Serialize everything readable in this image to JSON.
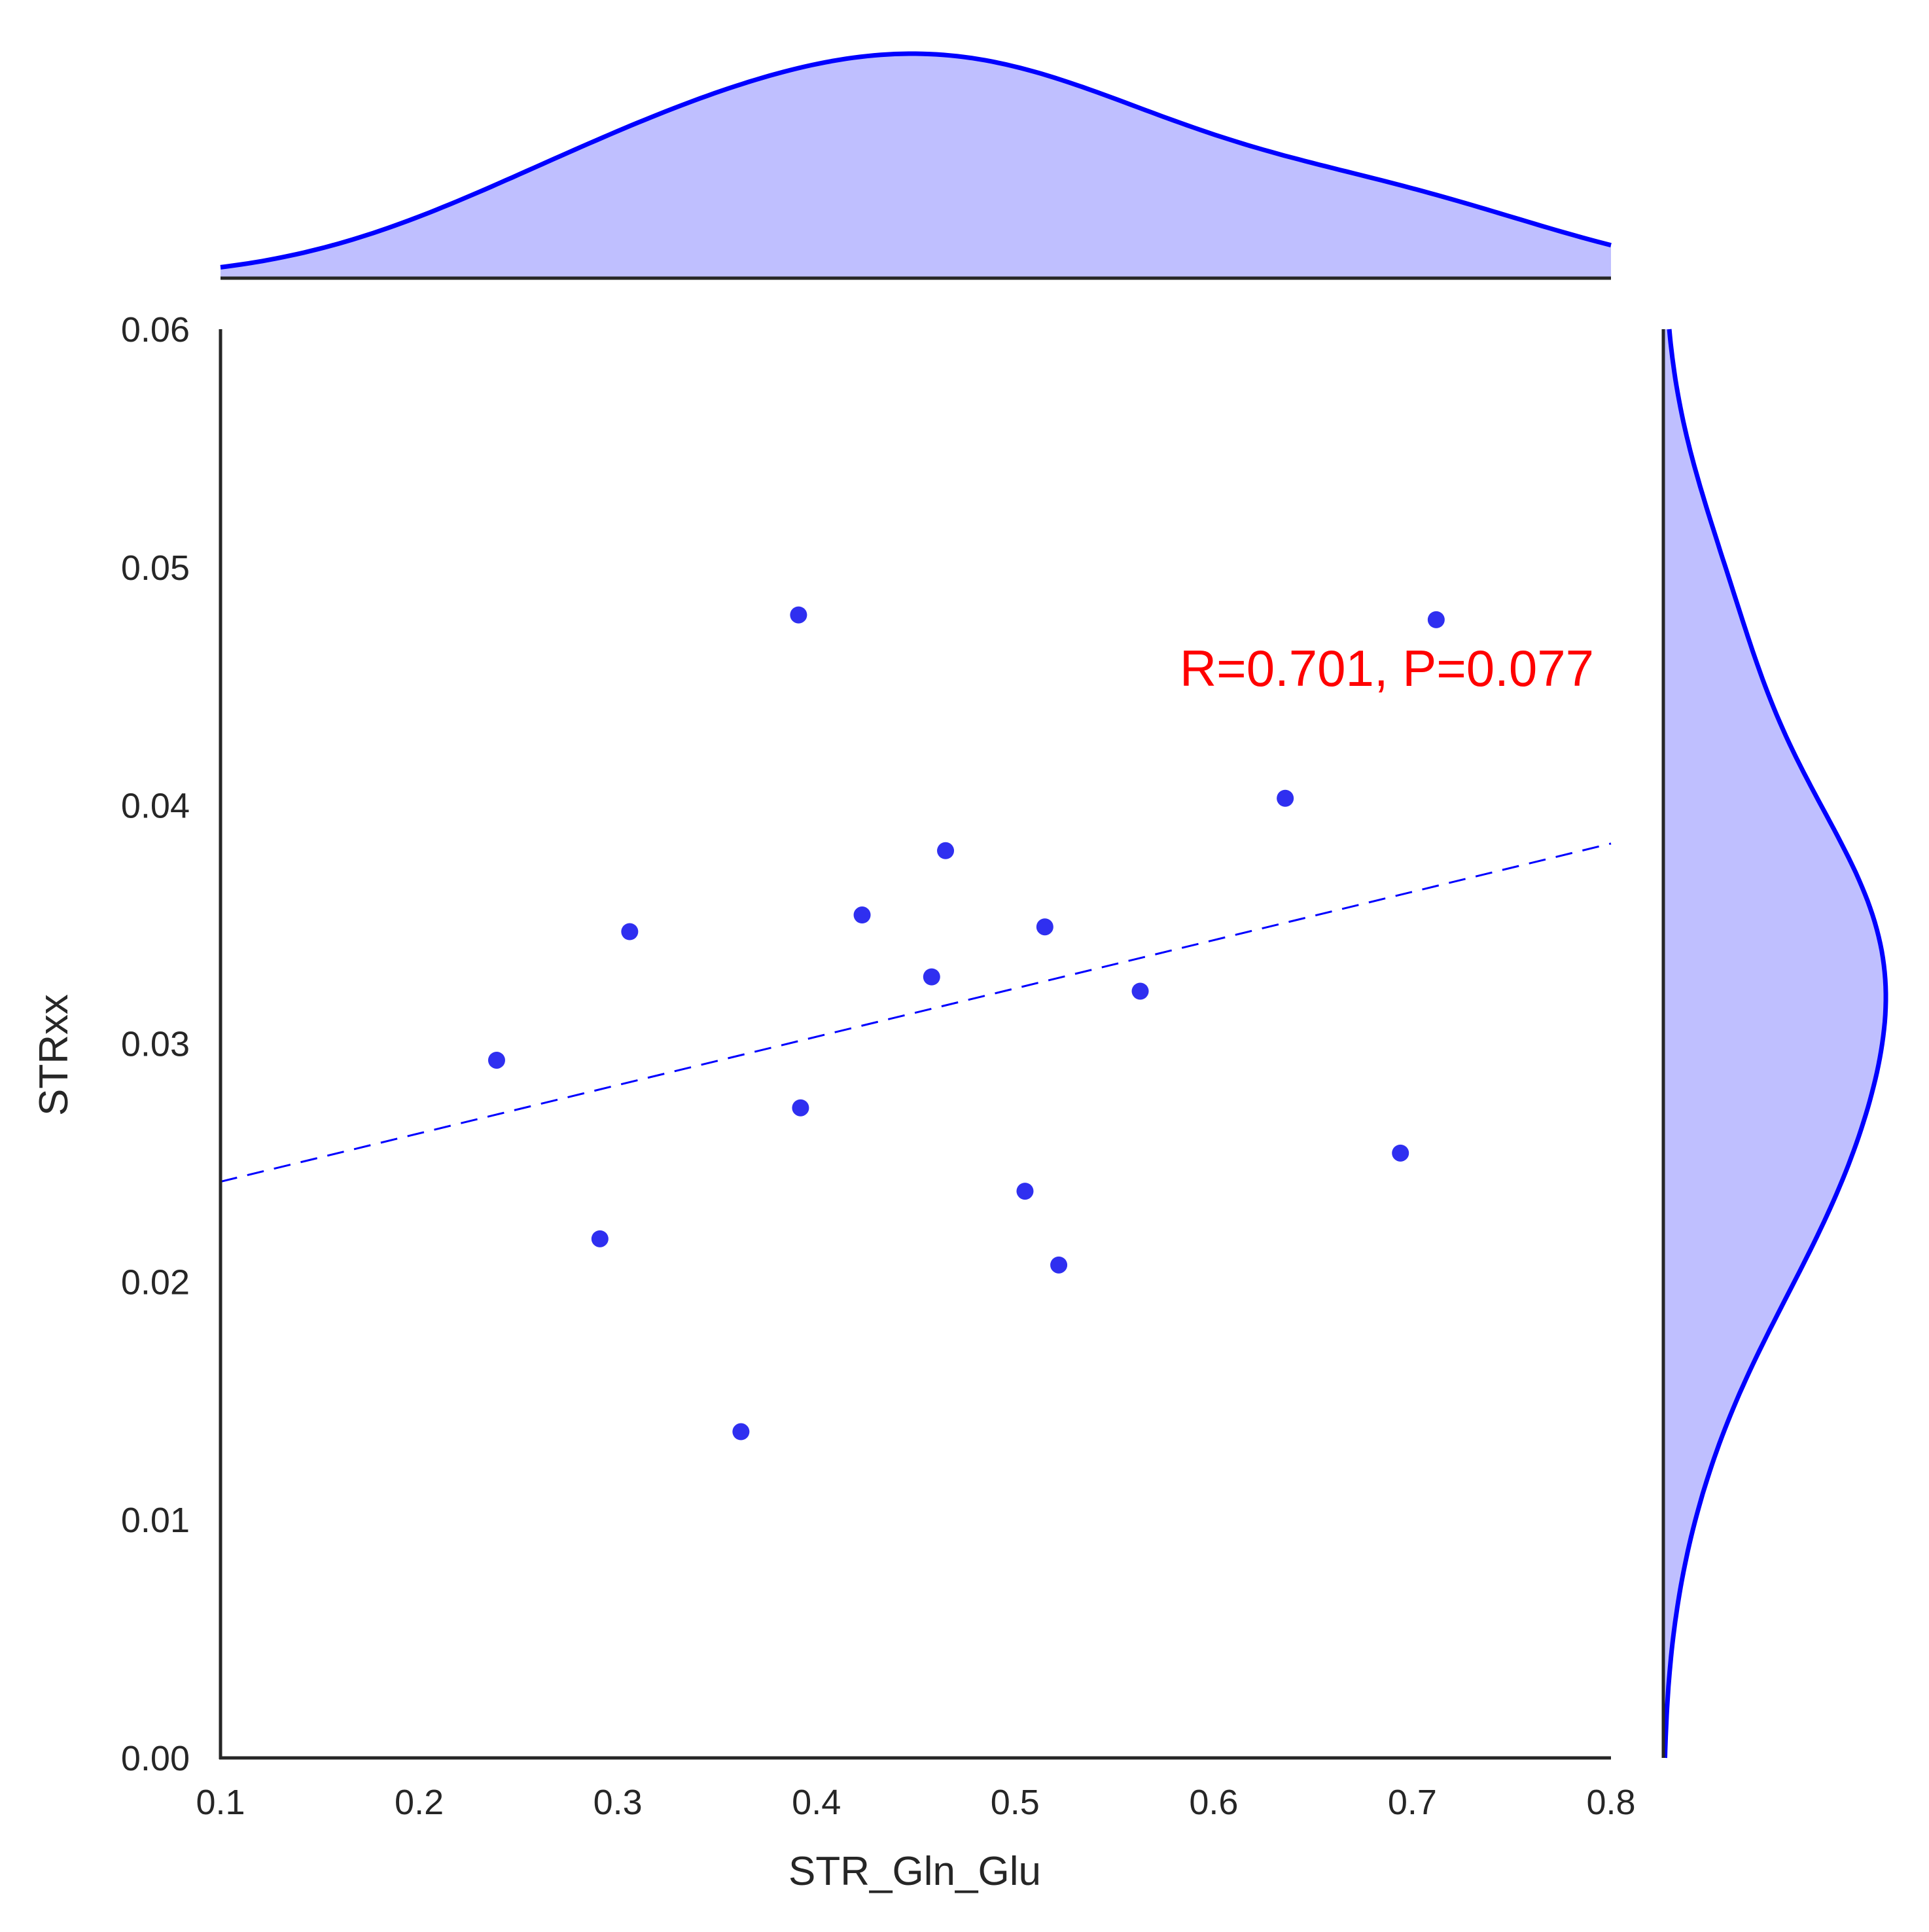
{
  "chart_data": {
    "type": "scatter",
    "xlabel": "STR_Gln_Glu",
    "ylabel": "STRxx",
    "xlim": [
      0.1,
      0.8
    ],
    "ylim": [
      0.0,
      0.06
    ],
    "xticks": [
      "0.1",
      "0.2",
      "0.3",
      "0.4",
      "0.5",
      "0.6",
      "0.7",
      "0.8"
    ],
    "yticks": [
      "0.00",
      "0.01",
      "0.02",
      "0.03",
      "0.04",
      "0.05",
      "0.06"
    ],
    "points": [
      {
        "x": 0.239,
        "y": 0.0293
      },
      {
        "x": 0.291,
        "y": 0.0218
      },
      {
        "x": 0.306,
        "y": 0.0347
      },
      {
        "x": 0.362,
        "y": 0.0137
      },
      {
        "x": 0.391,
        "y": 0.048
      },
      {
        "x": 0.392,
        "y": 0.0273
      },
      {
        "x": 0.423,
        "y": 0.0354
      },
      {
        "x": 0.458,
        "y": 0.0328
      },
      {
        "x": 0.465,
        "y": 0.0381
      },
      {
        "x": 0.505,
        "y": 0.0238
      },
      {
        "x": 0.515,
        "y": 0.0349
      },
      {
        "x": 0.522,
        "y": 0.0207
      },
      {
        "x": 0.563,
        "y": 0.0322
      },
      {
        "x": 0.636,
        "y": 0.0403
      },
      {
        "x": 0.694,
        "y": 0.0254
      },
      {
        "x": 0.712,
        "y": 0.0478
      }
    ],
    "regression_line": {
      "x": [
        0.1,
        0.8
      ],
      "y": [
        0.0242,
        0.0384
      ],
      "style": "dashed"
    },
    "annotation": "R=0.701, P=0.077",
    "marginal_x": "kde",
    "marginal_y": "kde",
    "grid": false
  },
  "colors": {
    "points": "#2f2ff0",
    "line": "#0000ff",
    "kde_fill": "#bfbfff",
    "kde_line": "#0000ff",
    "axis": "#262626",
    "annotation": "#ff0000"
  }
}
